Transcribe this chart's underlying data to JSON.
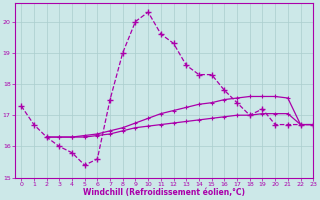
{
  "title": "",
  "xlabel": "Windchill (Refroidissement éolien,°C)",
  "bg_color": "#cce8e8",
  "line_color": "#aa00aa",
  "grid_color": "#aacece",
  "xlim": [
    -0.5,
    23
  ],
  "ylim": [
    15,
    20.6
  ],
  "yticks": [
    15,
    16,
    17,
    18,
    19,
    20
  ],
  "xticks": [
    0,
    1,
    2,
    3,
    4,
    5,
    6,
    7,
    8,
    9,
    10,
    11,
    12,
    13,
    14,
    15,
    16,
    17,
    18,
    19,
    20,
    21,
    22,
    23
  ],
  "series1_x": [
    0,
    1,
    2,
    3,
    4,
    5,
    6,
    7,
    8,
    9,
    10,
    11,
    12,
    13,
    14,
    15,
    16,
    17,
    18,
    19,
    20,
    21,
    22,
    23
  ],
  "series1_y": [
    17.3,
    16.7,
    16.3,
    16.0,
    15.8,
    15.4,
    15.6,
    17.5,
    19.0,
    20.0,
    20.3,
    19.6,
    19.3,
    18.6,
    18.3,
    18.3,
    17.8,
    17.4,
    17.0,
    17.2,
    16.7,
    16.7,
    16.7,
    16.7
  ],
  "series2_x": [
    2,
    3,
    4,
    5,
    6,
    7,
    8,
    9,
    10,
    11,
    12,
    13,
    14,
    15,
    16,
    17,
    18,
    19,
    20,
    21,
    22,
    23
  ],
  "series2_y": [
    16.3,
    16.3,
    16.3,
    16.3,
    16.35,
    16.4,
    16.5,
    16.6,
    16.65,
    16.7,
    16.75,
    16.8,
    16.85,
    16.9,
    16.95,
    17.0,
    17.0,
    17.05,
    17.05,
    17.05,
    16.7,
    16.7
  ],
  "series3_x": [
    2,
    3,
    4,
    5,
    6,
    7,
    8,
    9,
    10,
    11,
    12,
    13,
    14,
    15,
    16,
    17,
    18,
    19,
    20,
    21,
    22,
    23
  ],
  "series3_y": [
    16.3,
    16.3,
    16.3,
    16.35,
    16.4,
    16.5,
    16.6,
    16.75,
    16.9,
    17.05,
    17.15,
    17.25,
    17.35,
    17.4,
    17.5,
    17.55,
    17.6,
    17.6,
    17.6,
    17.55,
    16.7,
    16.7
  ]
}
